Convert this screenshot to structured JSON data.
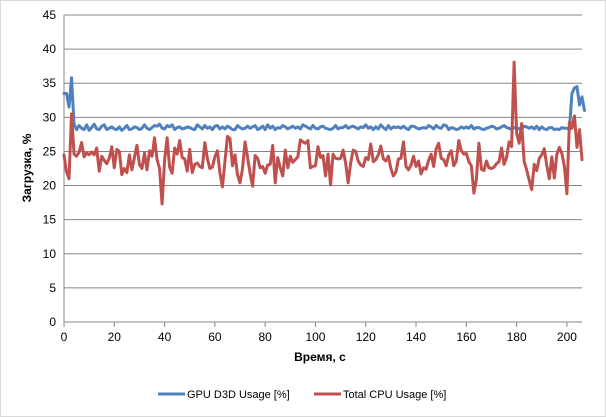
{
  "chart_data": {
    "type": "line",
    "xlabel": "Время, с",
    "ylabel": "Загрузка, %",
    "xlim": [
      0,
      206
    ],
    "ylim": [
      0,
      45
    ],
    "x_ticks": [
      0,
      20,
      40,
      60,
      80,
      100,
      120,
      140,
      160,
      180,
      200
    ],
    "y_ticks": [
      0,
      5,
      10,
      15,
      20,
      25,
      30,
      35,
      40,
      45
    ],
    "grid": "horizontal",
    "legend_position": "bottom",
    "series": [
      {
        "name": "GPU D3D Usage [%]",
        "color": "#4f81bd",
        "values": [
          33.5,
          33.5,
          31.5,
          35.8,
          29.0,
          28.2,
          28.8,
          28.4,
          28.2,
          28.9,
          28.1,
          28.5,
          29.0,
          28.3,
          28.2,
          28.7,
          28.9,
          28.2,
          28.4,
          28.6,
          28.3,
          28.2,
          28.6,
          28.1,
          28.4,
          28.8,
          28.2,
          28.3,
          28.6,
          28.5,
          28.2,
          28.4,
          28.9,
          28.4,
          28.2,
          28.5,
          28.8,
          28.7,
          29.0,
          28.4,
          28.3,
          28.8,
          28.6,
          28.9,
          28.2,
          28.5,
          28.6,
          28.3,
          28.4,
          28.6,
          28.5,
          28.3,
          28.2,
          28.9,
          28.6,
          28.3,
          28.8,
          28.4,
          28.6,
          28.2,
          28.7,
          28.8,
          28.3,
          28.6,
          28.3,
          28.7,
          28.5,
          28.2,
          28.2,
          28.8,
          28.5,
          28.3,
          28.4,
          28.7,
          28.4,
          28.6,
          28.8,
          28.2,
          28.4,
          28.7,
          28.2,
          28.9,
          28.4,
          28.7,
          28.2,
          28.5,
          28.4,
          28.8,
          28.6,
          28.3,
          28.5,
          28.7,
          28.4,
          28.6,
          28.3,
          28.9,
          28.7,
          28.5,
          28.3,
          28.8,
          28.4,
          28.3,
          28.6,
          28.7,
          28.4,
          28.3,
          28.2,
          28.4,
          28.8,
          28.3,
          28.5,
          28.5,
          28.8,
          28.4,
          28.6,
          28.7,
          28.5,
          28.3,
          28.6,
          28.5,
          28.9,
          28.4,
          28.6,
          28.2,
          28.6,
          28.3,
          28.9,
          28.5,
          28.2,
          28.8,
          28.3,
          28.6,
          28.5,
          28.6,
          28.4,
          28.7,
          28.4,
          28.2,
          28.7,
          28.7,
          28.5,
          28.3,
          28.4,
          28.5,
          28.4,
          28.8,
          28.6,
          28.3,
          28.8,
          28.5,
          28.4,
          28.9,
          28.8,
          28.2,
          28.5,
          28.4,
          28.2,
          28.3,
          28.6,
          28.4,
          28.6,
          28.4,
          28.8,
          28.3,
          28.5,
          28.5,
          28.3,
          28.2,
          28.4,
          28.5,
          28.7,
          28.6,
          28.3,
          28.4,
          28.6,
          28.8,
          28.5,
          28.4,
          28.2,
          28.5,
          28.5,
          28.3,
          28.3,
          28.7,
          28.6,
          28.4,
          28.6,
          28.3,
          28.7,
          28.2,
          28.6,
          28.3,
          28.2,
          28.5,
          28.5,
          28.2,
          28.3,
          28.2,
          28.5,
          28.4,
          28.4,
          28.2,
          33.5,
          34.3,
          34.5,
          31.8,
          33.0,
          31.0
        ]
      },
      {
        "name": "Total CPU Usage [%]",
        "color": "#c0504d",
        "values": [
          24.5,
          22.0,
          21.0,
          30.5,
          24.6,
          24.3,
          24.9,
          26.3,
          24.2,
          24.8,
          24.5,
          24.9,
          24.5,
          25.5,
          22.1,
          24.3,
          23.7,
          23.2,
          24.0,
          25.7,
          22.6,
          25.3,
          25.0,
          21.6,
          22.5,
          21.9,
          24.5,
          22.3,
          24.1,
          25.9,
          23.1,
          22.5,
          24.8,
          22.3,
          25.1,
          24.3,
          27.0,
          23.8,
          22.5,
          17.3,
          23.7,
          27.0,
          22.7,
          21.8,
          25.5,
          24.6,
          26.6,
          24.1,
          23.9,
          22.1,
          25.3,
          21.9,
          23.1,
          23.3,
          22.8,
          22.6,
          26.3,
          24.0,
          22.5,
          22.7,
          24.2,
          25.1,
          21.9,
          19.8,
          23.5,
          27.2,
          26.9,
          22.9,
          24.5,
          21.6,
          20.4,
          22.5,
          26.4,
          24.1,
          21.8,
          19.9,
          24.4,
          24.0,
          22.6,
          22.8,
          21.8,
          23.0,
          23.1,
          25.9,
          20.4,
          24.1,
          22.6,
          21.4,
          25.2,
          22.6,
          24.3,
          23.4,
          23.8,
          24.2,
          26.7,
          26.4,
          26.2,
          26.6,
          22.6,
          22.8,
          22.9,
          25.7,
          24.1,
          24.4,
          21.4,
          24.6,
          20.1,
          24.6,
          24.0,
          23.9,
          24.0,
          25.2,
          23.3,
          20.4,
          23.3,
          25.2,
          25.0,
          23.6,
          23.0,
          22.8,
          24.1,
          23.8,
          26.1,
          23.5,
          23.8,
          24.5,
          25.8,
          23.9,
          23.6,
          24.3,
          22.5,
          21.4,
          22.0,
          23.9,
          24.0,
          26.4,
          22.8,
          22.3,
          23.0,
          24.3,
          22.8,
          23.6,
          21.7,
          22.6,
          22.4,
          23.7,
          24.6,
          22.8,
          25.4,
          26.2,
          24.0,
          23.8,
          22.9,
          24.5,
          25.1,
          22.9,
          23.6,
          26.6,
          25.1,
          24.6,
          24.7,
          23.5,
          22.9,
          18.9,
          20.9,
          26.2,
          22.4,
          22.2,
          23.6,
          22.6,
          22.5,
          22.7,
          23.2,
          23.5,
          25.5,
          23.1,
          24.1,
          26.4,
          25.7,
          38.1,
          27.7,
          26.2,
          29.1,
          23.5,
          22.3,
          20.8,
          19.4,
          23.1,
          22.2,
          24.0,
          24.5,
          25.4,
          22.9,
          21.0,
          24.2,
          21.1,
          24.6,
          25.6,
          24.7,
          22.8,
          18.8,
          29.3,
          28.4,
          30.2,
          25.6,
          28.2,
          23.8
        ]
      }
    ]
  }
}
